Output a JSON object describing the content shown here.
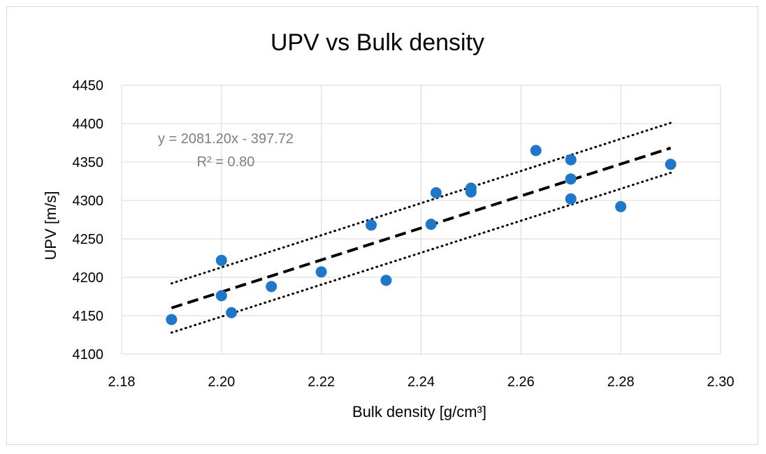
{
  "chart_data": {
    "type": "scatter",
    "title": "UPV vs Bulk density",
    "xlabel": "Bulk density [g/cm³]",
    "ylabel": "UPV [m/s]",
    "xlim": [
      2.18,
      2.3
    ],
    "ylim": [
      4100,
      4450
    ],
    "xticks": [
      "2.18",
      "2.20",
      "2.22",
      "2.24",
      "2.26",
      "2.28",
      "2.30"
    ],
    "yticks": [
      "4100",
      "4150",
      "4200",
      "4250",
      "4300",
      "4350",
      "4400",
      "4450"
    ],
    "grid": true,
    "legend": "none",
    "marker_color": "#1f77c9",
    "points": [
      {
        "x": 2.19,
        "y": 4145
      },
      {
        "x": 2.2,
        "y": 4222
      },
      {
        "x": 2.2,
        "y": 4176
      },
      {
        "x": 2.202,
        "y": 4154
      },
      {
        "x": 2.21,
        "y": 4188
      },
      {
        "x": 2.22,
        "y": 4207
      },
      {
        "x": 2.23,
        "y": 4268
      },
      {
        "x": 2.233,
        "y": 4196
      },
      {
        "x": 2.242,
        "y": 4269
      },
      {
        "x": 2.243,
        "y": 4310
      },
      {
        "x": 2.25,
        "y": 4316
      },
      {
        "x": 2.25,
        "y": 4311
      },
      {
        "x": 2.263,
        "y": 4365
      },
      {
        "x": 2.27,
        "y": 4353
      },
      {
        "x": 2.27,
        "y": 4328
      },
      {
        "x": 2.27,
        "y": 4302
      },
      {
        "x": 2.28,
        "y": 4292
      },
      {
        "x": 2.29,
        "y": 4347
      }
    ],
    "trendline": {
      "equation": "y = 2081.20x - 397.72",
      "r_squared": "R² = 0.80",
      "slope": 2081.2,
      "intercept": -397.72,
      "x_range": [
        2.19,
        2.29
      ]
    },
    "confidence_band": {
      "upper": [
        {
          "x": 2.19,
          "y": 4192
        },
        {
          "x": 2.29,
          "y": 4401
        }
      ],
      "lower": [
        {
          "x": 2.19,
          "y": 4128
        },
        {
          "x": 2.29,
          "y": 4336
        }
      ]
    }
  }
}
